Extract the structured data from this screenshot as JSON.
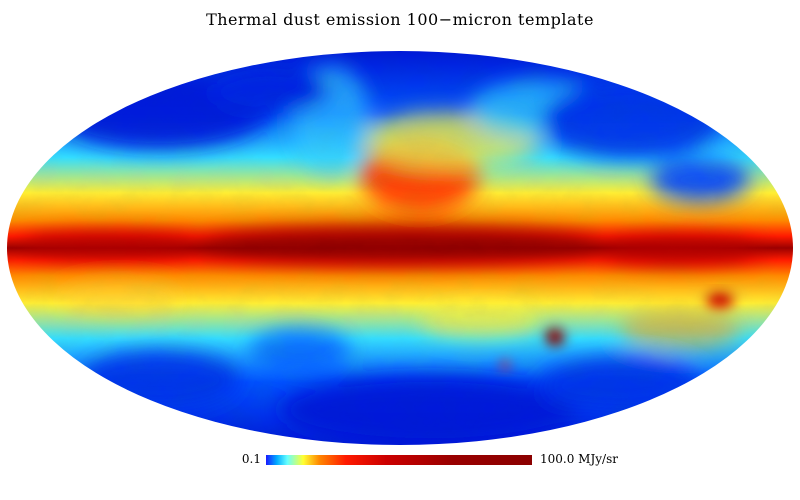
{
  "title": "Thermal dust emission 100−micron template",
  "colorbar": {
    "min_label": "0.1",
    "max_label": "100.0 MJy/sr",
    "colors": [
      "#1a1aff",
      "#00aaff",
      "#66ffff",
      "#ffff33",
      "#ff8800",
      "#ff1a00",
      "#cc0000",
      "#990000",
      "#8b0000"
    ]
  },
  "map": {
    "projection": "mollweide",
    "background_color": "#ffffff",
    "palette": {
      "deep_blue": "#0018d8",
      "blue": "#0055ff",
      "cyan": "#33ddff",
      "yellow": "#ffee33",
      "orange": "#ff8800",
      "red": "#ff1a00",
      "dark_red": "#9b0000"
    }
  }
}
